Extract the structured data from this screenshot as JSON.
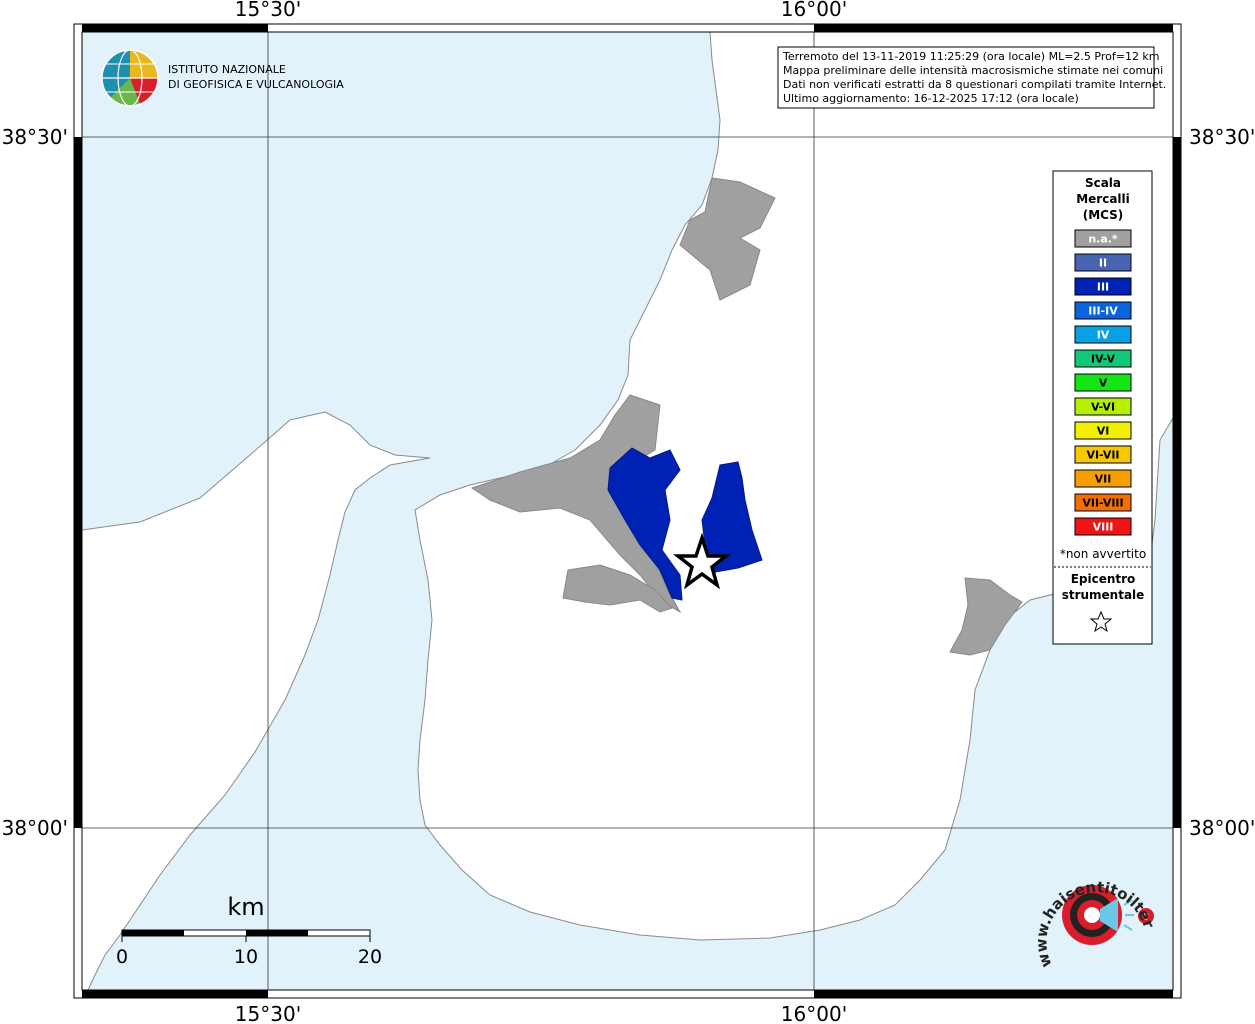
{
  "map": {
    "coordinates": {
      "top": [
        "15°30'",
        "16°00'"
      ],
      "bottom": [
        "15°30'",
        "16°00'"
      ],
      "left": [
        "38°30'",
        "38°00'"
      ],
      "right": [
        "38°30'",
        "38°00'"
      ]
    },
    "colors": {
      "sea": "#e1f2fa",
      "land": "#ffffff",
      "not_felt": "#a0a0a0",
      "intensity_III": "#0022b4"
    }
  },
  "header_logo": {
    "line1": "ISTITUTO NAZIONALE",
    "line2": "DI GEOFISICA E VULCANOLOGIA"
  },
  "info_box": {
    "line1": "Terremoto del 13-11-2019 11:25:29 (ora locale) ML=2.5 Prof=12 km",
    "line2": "Mappa preliminare delle intensità macrosismiche stimate nei comuni",
    "line3": "Dati non verificati estratti da 8 questionari compilati tramite Internet.",
    "line4": "Ultimo aggiornamento: 16-12-2025 17:12 (ora locale)"
  },
  "legend": {
    "title_lines": [
      "Scala",
      "Mercalli",
      "(MCS)"
    ],
    "items": [
      {
        "label": "n.a.*",
        "color": "#a0a0a0",
        "text_color": "#ffffff"
      },
      {
        "label": "II",
        "color": "#4a64b4",
        "text_color": "#ffffff"
      },
      {
        "label": "III",
        "color": "#0022b4",
        "text_color": "#ffffff"
      },
      {
        "label": "III-IV",
        "color": "#0a64dc",
        "text_color": "#ffffff"
      },
      {
        "label": "IV",
        "color": "#0aa0e6",
        "text_color": "#ffffff"
      },
      {
        "label": "IV-V",
        "color": "#10c878",
        "text_color": "#000000"
      },
      {
        "label": "V",
        "color": "#14e614",
        "text_color": "#000000"
      },
      {
        "label": "V-VI",
        "color": "#b4f000",
        "text_color": "#000000"
      },
      {
        "label": "VI",
        "color": "#f0f000",
        "text_color": "#000000"
      },
      {
        "label": "VI-VII",
        "color": "#f5c800",
        "text_color": "#000000"
      },
      {
        "label": "VII",
        "color": "#f5a000",
        "text_color": "#000000"
      },
      {
        "label": "VII-VIII",
        "color": "#f56e00",
        "text_color": "#000000"
      },
      {
        "label": "VIII",
        "color": "#f01414",
        "text_color": "#ffffff"
      }
    ],
    "not_felt_note": "*non avvertito",
    "epicenter_lines": [
      "Epicentro",
      "strumentale"
    ],
    "epicenter_icon": "star-icon"
  },
  "scale_bar": {
    "unit": "km",
    "ticks": [
      "0",
      "10",
      "20"
    ]
  },
  "footer_logo": {
    "text": "www.haisentitoilterremoto.it",
    "icon": "target-speaker-icon"
  }
}
